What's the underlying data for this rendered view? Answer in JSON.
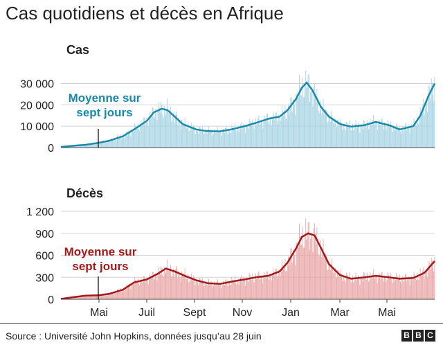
{
  "title": "Cas quotidiens et décès en Afrique",
  "source": "Source : Université John Hopkins, données jusqu’au 28 juin",
  "logo": [
    "B",
    "B",
    "C"
  ],
  "colors": {
    "cases_bar": "#a8d4e4",
    "cases_line": "#1a8aab",
    "deaths_bar": "#e9a7a7",
    "deaths_line": "#a31a1a",
    "grid": "#d0d0d0",
    "text": "#222222"
  },
  "chart_data": [
    {
      "type": "bar",
      "title": "Cas",
      "annotation": [
        "Moyenne sur",
        "sept jours"
      ],
      "annotation_date": "2020-05-01",
      "x_range": [
        "2020-03-15",
        "2021-06-28"
      ],
      "x_ticks": [
        "Mai",
        "Juil",
        "Sept",
        "Nov",
        "Jan",
        "Mar",
        "Mai"
      ],
      "y_ticks": [
        0,
        10000,
        20000,
        30000
      ],
      "y_tick_labels": [
        "0",
        "10 000",
        "20 000",
        "30 000"
      ],
      "ylim": [
        0,
        36000
      ],
      "grid": true,
      "series": [
        {
          "name": "Moyenne sur sept jours",
          "kind": "line",
          "points": [
            [
              "2020-03-15",
              300
            ],
            [
              "2020-04-01",
              900
            ],
            [
              "2020-04-15",
              1300
            ],
            [
              "2020-05-01",
              2200
            ],
            [
              "2020-05-15",
              3200
            ],
            [
              "2020-06-01",
              5300
            ],
            [
              "2020-06-15",
              8500
            ],
            [
              "2020-07-01",
              12500
            ],
            [
              "2020-07-10",
              16500
            ],
            [
              "2020-07-20",
              18200
            ],
            [
              "2020-07-27",
              17500
            ],
            [
              "2020-08-05",
              14500
            ],
            [
              "2020-08-15",
              11000
            ],
            [
              "2020-09-01",
              8500
            ],
            [
              "2020-09-15",
              7700
            ],
            [
              "2020-10-01",
              7600
            ],
            [
              "2020-10-15",
              8500
            ],
            [
              "2020-11-01",
              10000
            ],
            [
              "2020-11-15",
              11500
            ],
            [
              "2020-12-01",
              13500
            ],
            [
              "2020-12-15",
              14500
            ],
            [
              "2020-12-25",
              17500
            ],
            [
              "2021-01-05",
              23000
            ],
            [
              "2021-01-12",
              28000
            ],
            [
              "2021-01-18",
              30500
            ],
            [
              "2021-01-25",
              27000
            ],
            [
              "2021-02-05",
              19000
            ],
            [
              "2021-02-15",
              14500
            ],
            [
              "2021-03-01",
              11000
            ],
            [
              "2021-03-15",
              9800
            ],
            [
              "2021-04-01",
              10500
            ],
            [
              "2021-04-15",
              12000
            ],
            [
              "2021-05-01",
              10500
            ],
            [
              "2021-05-15",
              8500
            ],
            [
              "2021-06-01",
              10000
            ],
            [
              "2021-06-10",
              15000
            ],
            [
              "2021-06-20",
              24000
            ],
            [
              "2021-06-28",
              30000
            ]
          ]
        }
      ]
    },
    {
      "type": "bar",
      "title": "Décès",
      "annotation": [
        "Moyenne sur",
        "sept jours"
      ],
      "annotation_date": "2020-05-01",
      "x_range": [
        "2020-03-15",
        "2021-06-28"
      ],
      "x_ticks": [
        "Mai",
        "Juil",
        "Sept",
        "Nov",
        "Jan",
        "Mar",
        "Mai"
      ],
      "y_ticks": [
        0,
        300,
        600,
        900,
        1200
      ],
      "y_tick_labels": [
        "0",
        "300",
        "600",
        "900",
        "1 200"
      ],
      "ylim": [
        0,
        1200
      ],
      "grid": true,
      "series": [
        {
          "name": "Moyenne sur sept jours",
          "kind": "line",
          "points": [
            [
              "2020-03-15",
              5
            ],
            [
              "2020-04-01",
              30
            ],
            [
              "2020-04-15",
              50
            ],
            [
              "2020-05-01",
              55
            ],
            [
              "2020-05-15",
              75
            ],
            [
              "2020-06-01",
              130
            ],
            [
              "2020-06-15",
              230
            ],
            [
              "2020-07-01",
              270
            ],
            [
              "2020-07-15",
              350
            ],
            [
              "2020-07-25",
              420
            ],
            [
              "2020-08-05",
              380
            ],
            [
              "2020-08-20",
              310
            ],
            [
              "2020-09-01",
              260
            ],
            [
              "2020-09-15",
              220
            ],
            [
              "2020-10-01",
              210
            ],
            [
              "2020-10-15",
              240
            ],
            [
              "2020-11-01",
              270
            ],
            [
              "2020-11-15",
              300
            ],
            [
              "2020-12-01",
              320
            ],
            [
              "2020-12-15",
              380
            ],
            [
              "2020-12-25",
              500
            ],
            [
              "2021-01-05",
              700
            ],
            [
              "2021-01-12",
              850
            ],
            [
              "2021-01-20",
              900
            ],
            [
              "2021-01-28",
              870
            ],
            [
              "2021-02-05",
              700
            ],
            [
              "2021-02-15",
              480
            ],
            [
              "2021-03-01",
              330
            ],
            [
              "2021-03-15",
              280
            ],
            [
              "2021-04-01",
              300
            ],
            [
              "2021-04-15",
              320
            ],
            [
              "2021-05-01",
              300
            ],
            [
              "2021-05-15",
              280
            ],
            [
              "2021-06-01",
              290
            ],
            [
              "2021-06-15",
              360
            ],
            [
              "2021-06-28",
              520
            ]
          ]
        }
      ]
    }
  ]
}
